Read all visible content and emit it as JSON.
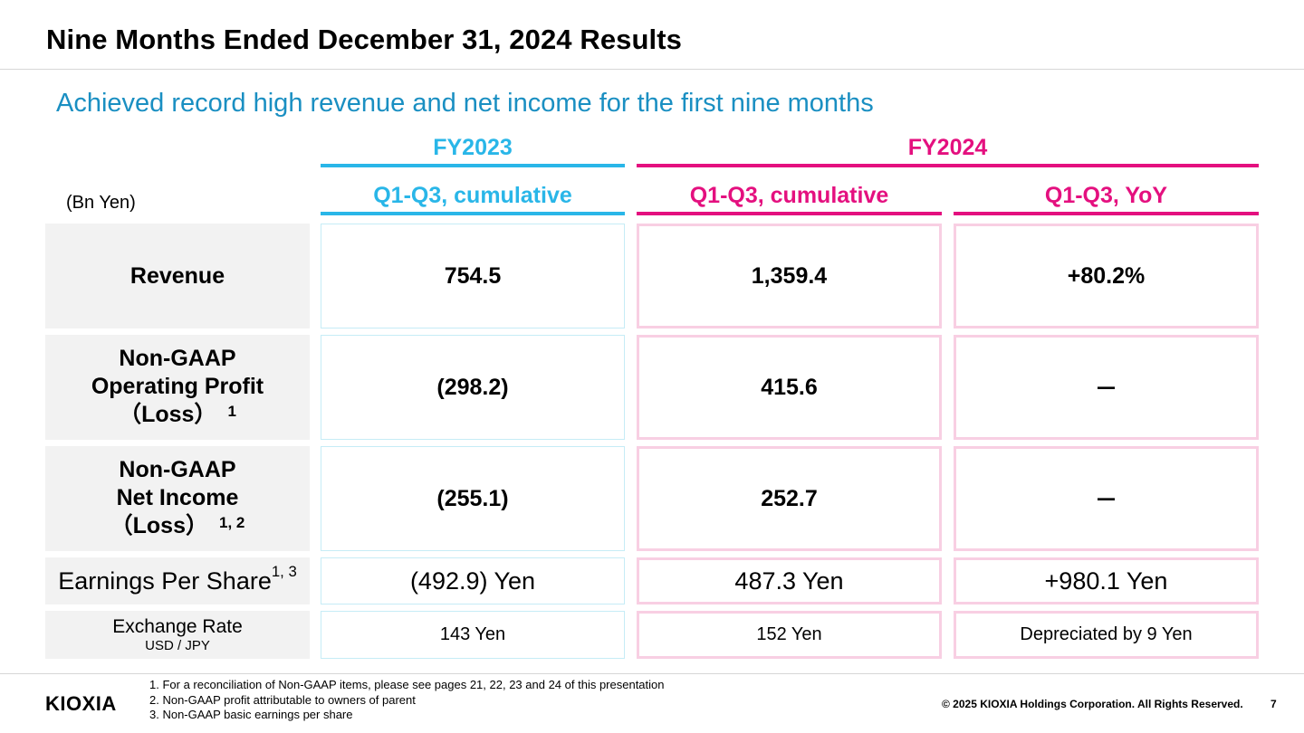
{
  "title": "Nine Months Ended December 31, 2024 Results",
  "subtitle": "Achieved record high revenue and net income for the first nine months",
  "unit": "(Bn Yen)",
  "header": {
    "fy2023": "FY2023",
    "fy2024": "FY2024",
    "columns": [
      "Q1-Q3, cumulative",
      "Q1-Q3, cumulative",
      "Q1-Q3, YoY"
    ]
  },
  "colors": {
    "fy2023": "#29b6e8",
    "fy2024": "#e4107f",
    "subtitle": "#1a8fc2"
  },
  "rows": [
    {
      "label_lines": [
        "Revenue"
      ],
      "note": "",
      "values": [
        "754.5",
        "1,359.4",
        "+80.2%"
      ]
    },
    {
      "label_lines": [
        "Non-GAAP",
        "Operating Profit",
        "（Loss）"
      ],
      "note": "1",
      "values": [
        "(298.2)",
        "415.6",
        "－"
      ]
    },
    {
      "label_lines": [
        "Non-GAAP",
        "Net Income",
        "（Loss）"
      ],
      "note": "1, 2",
      "values": [
        "(255.1)",
        "252.7",
        "－"
      ]
    },
    {
      "label": "Earnings Per Share",
      "note": "1, 3",
      "values": [
        "(492.9) Yen",
        "487.3 Yen",
        "+980.1 Yen"
      ]
    },
    {
      "label": "Exchange Rate",
      "sublabel": "USD / JPY",
      "values": [
        "143 Yen",
        "152 Yen",
        "Depreciated by 9 Yen"
      ]
    }
  ],
  "footnotes": [
    "1. For a reconciliation of Non-GAAP items, please see pages 21, 22, 23 and 24 of this presentation",
    "2. Non-GAAP profit attributable to owners of parent",
    "3. Non-GAAP basic earnings per share"
  ],
  "logo": "KIOXIA",
  "copyright": "© 2025 KIOXIA Holdings Corporation. All Rights Reserved.",
  "page_number": "7"
}
